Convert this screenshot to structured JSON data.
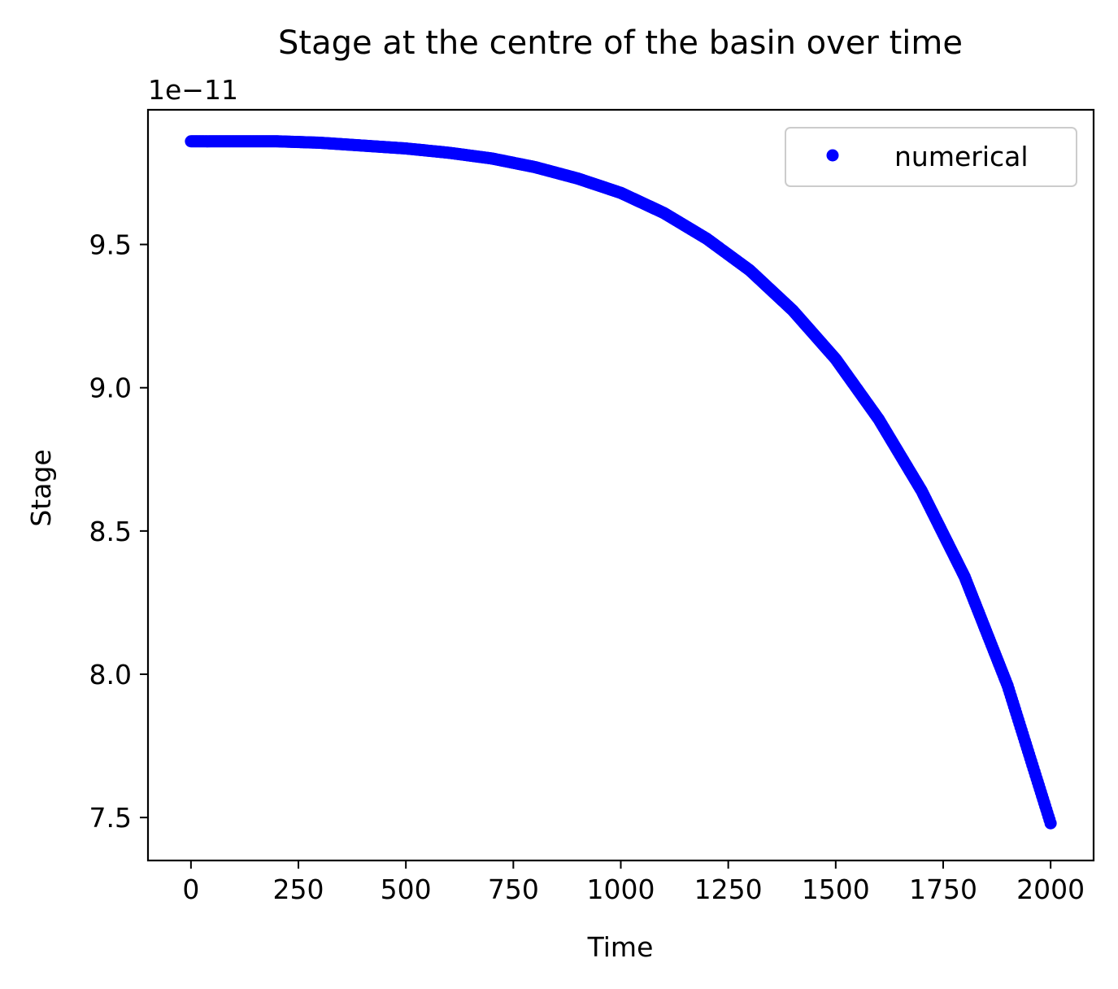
{
  "chart_data": {
    "type": "scatter",
    "title": "Stage at the centre of the  basin over time",
    "xlabel": "Time",
    "ylabel": "Stage",
    "offset_label": "1e−11",
    "xlim": [
      -100,
      2100
    ],
    "ylim": [
      7.35,
      9.97
    ],
    "x_ticks": [
      0,
      250,
      500,
      750,
      1000,
      1250,
      1500,
      1750,
      2000
    ],
    "x_tick_labels": [
      "0",
      "250",
      "500",
      "750",
      "1000",
      "1250",
      "1500",
      "1750",
      "2000"
    ],
    "y_ticks": [
      7.5,
      8.0,
      8.5,
      9.0,
      9.5
    ],
    "y_tick_labels": [
      "7.5",
      "8.0",
      "8.5",
      "9.0",
      "9.5"
    ],
    "legend": {
      "position": "upper right",
      "entries": [
        {
          "label": "numerical",
          "color": "#0000ff",
          "marker": "circle"
        }
      ]
    },
    "grid": false,
    "series": [
      {
        "name": "numerical",
        "color": "#0000ff",
        "marker": "circle",
        "x": [
          0,
          100,
          200,
          300,
          400,
          500,
          600,
          700,
          800,
          900,
          1000,
          1100,
          1200,
          1300,
          1400,
          1500,
          1600,
          1700,
          1800,
          1900,
          2000
        ],
        "y": [
          9.86,
          9.86,
          9.86,
          9.855,
          9.845,
          9.835,
          9.82,
          9.8,
          9.77,
          9.73,
          9.68,
          9.61,
          9.52,
          9.41,
          9.27,
          9.1,
          8.89,
          8.64,
          8.34,
          7.96,
          7.48
        ]
      }
    ]
  }
}
